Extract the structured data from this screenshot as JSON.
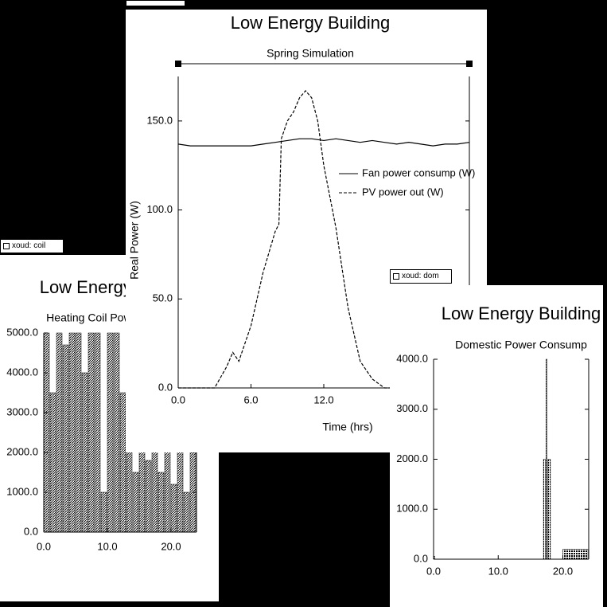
{
  "windows": [
    {
      "label": "xoud: coil"
    },
    {
      "label": "xoud: dom"
    }
  ],
  "chart_data": [
    {
      "type": "histogram",
      "title": "Low Energy Building",
      "subtitle": "Heating Coil Power Consump",
      "bins": [
        0,
        1,
        2,
        3,
        4,
        5,
        6,
        7,
        8,
        9,
        10,
        11,
        12,
        13,
        14,
        15,
        16,
        17,
        18,
        19,
        20,
        21,
        22,
        23,
        24
      ],
      "values": [
        5000,
        3500,
        5000,
        4700,
        5000,
        5000,
        4000,
        5000,
        5000,
        1000,
        5000,
        5000,
        3500,
        2000,
        1500,
        2500,
        1800,
        2500,
        1500,
        2800,
        1200,
        2600,
        1000,
        2000
      ],
      "fill": "hatch",
      "xlim": [
        0,
        24
      ],
      "ylim": [
        0,
        5000
      ],
      "xticks": [
        {
          "value": 0,
          "label": "0.0"
        },
        {
          "value": 10,
          "label": "10.0"
        },
        {
          "value": 20,
          "label": "20.0"
        }
      ],
      "yticks": [
        {
          "value": 0,
          "label": "0.0"
        },
        {
          "value": 1000,
          "label": "1000.0"
        },
        {
          "value": 2000,
          "label": "2000.0"
        },
        {
          "value": 3000,
          "label": "3000.0"
        },
        {
          "value": 4000,
          "label": "4000.0"
        },
        {
          "value": 5000,
          "label": "5000.0"
        }
      ]
    },
    {
      "type": "line",
      "title": "Low Energy Building",
      "subtitle": "Spring Simulation",
      "y_label": "Real Power  (W)",
      "x_label": "Time (hrs)",
      "xlim": [
        0,
        24
      ],
      "ylim": [
        0,
        175
      ],
      "xticks": [
        {
          "value": 0,
          "label": "0.0"
        },
        {
          "value": 6,
          "label": "6.0"
        },
        {
          "value": 12,
          "label": "12.0"
        }
      ],
      "yticks": [
        {
          "value": 0,
          "label": "0.0"
        },
        {
          "value": 50,
          "label": "50.0"
        },
        {
          "value": 100,
          "label": "100.0"
        },
        {
          "value": 150,
          "label": "150.0"
        }
      ],
      "series": [
        {
          "name": "Fan power consump (W)",
          "color": "#000000",
          "linestyle": "solid",
          "x": [
            0,
            1,
            2,
            3,
            4,
            5,
            6,
            7,
            8,
            9,
            10,
            11,
            12,
            13,
            14,
            15,
            16,
            17,
            18,
            19,
            20,
            21,
            22,
            23,
            24
          ],
          "values": [
            137,
            136,
            136,
            136,
            136,
            136,
            136,
            137,
            138,
            139,
            140,
            140,
            139,
            140,
            139,
            138,
            139,
            138,
            137,
            138,
            137,
            136,
            137,
            137,
            138
          ]
        },
        {
          "name": "PV power out (W)",
          "color": "#000000",
          "linestyle": "dashed",
          "x": [
            0,
            1,
            2,
            3,
            4,
            4.5,
            5,
            6,
            7,
            8,
            8.3,
            8.5,
            9,
            9.5,
            10,
            10.5,
            11,
            11.5,
            12,
            13,
            14,
            15,
            16,
            17,
            18,
            19,
            20,
            21,
            22,
            23,
            24
          ],
          "values": [
            0,
            0,
            0,
            0,
            12,
            20,
            15,
            35,
            65,
            88,
            92,
            140,
            150,
            155,
            163,
            167,
            163,
            150,
            125,
            90,
            45,
            15,
            5,
            0,
            0,
            0,
            0,
            0,
            0,
            0,
            0
          ]
        }
      ]
    },
    {
      "type": "histogram",
      "title": "Low Energy Building",
      "subtitle": "Domestic Power Consump",
      "bins": [
        0,
        0.3,
        17,
        17.4,
        17.7,
        18.2,
        20,
        24
      ],
      "values": [
        60,
        0,
        2000,
        4000,
        2000,
        0,
        200
      ],
      "fill": "dots",
      "xlim": [
        0,
        24
      ],
      "ylim": [
        0,
        4000
      ],
      "xticks": [
        {
          "value": 0,
          "label": "0.0"
        },
        {
          "value": 10,
          "label": "10.0"
        },
        {
          "value": 20,
          "label": "20.0"
        }
      ],
      "yticks": [
        {
          "value": 0,
          "label": "0.0"
        },
        {
          "value": 1000,
          "label": "1000.0"
        },
        {
          "value": 2000,
          "label": "2000.0"
        },
        {
          "value": 3000,
          "label": "3000.0"
        },
        {
          "value": 4000,
          "label": "4000.0"
        }
      ]
    }
  ]
}
